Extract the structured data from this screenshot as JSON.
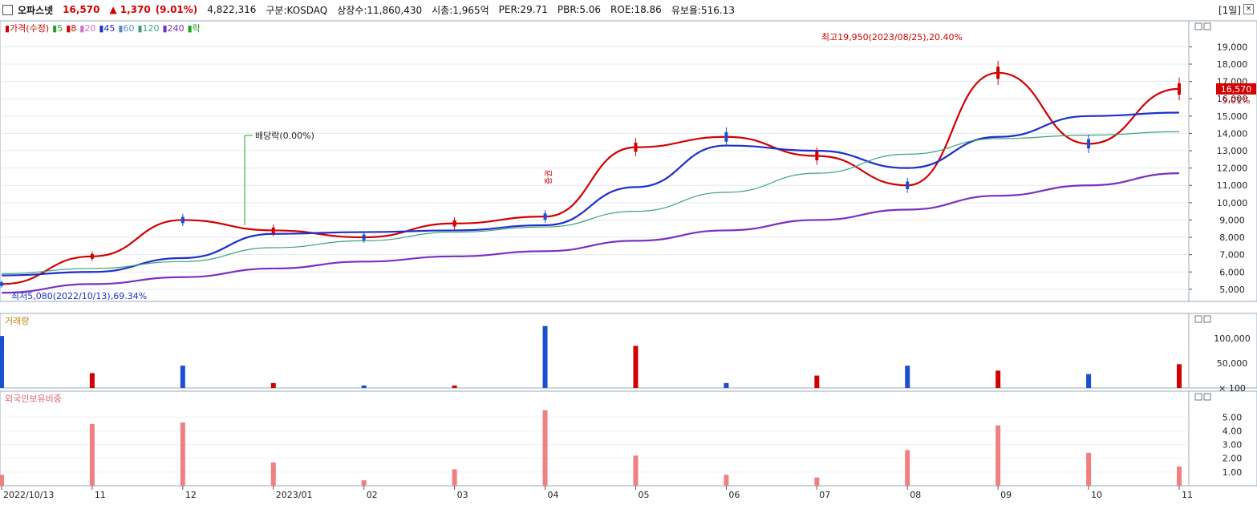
{
  "header": {
    "stock_name": "오파스넷",
    "price": "16,570",
    "change_arrow": "▲",
    "change": "1,370",
    "change_pct": "(9.01%)",
    "volume": "4,822,316",
    "market": "구분:KOSDAQ",
    "listed_shares": "상장수:11,860,430",
    "market_cap": "시총:1,965억",
    "per": "PER:29.71",
    "pbr": "PBR:5.06",
    "roe": "ROE:18.86",
    "float_ratio": "유보율:516.13",
    "period": "[1일]"
  },
  "price_panel": {
    "legend": [
      {
        "label": "가격(수정)",
        "color": "#d20000"
      },
      {
        "label": "5",
        "color": "#21a021"
      },
      {
        "label": "8",
        "color": "#d20000"
      },
      {
        "label": "20",
        "color": "#d070c0"
      },
      {
        "label": "45",
        "color": "#1c2fc8"
      },
      {
        "label": "60",
        "color": "#5a8ac8"
      },
      {
        "label": "120",
        "color": "#3aa07a"
      },
      {
        "label": "240",
        "color": "#7a30c0"
      },
      {
        "label": "락",
        "color": "#21a021"
      }
    ],
    "high_annotation": "최고19,950(2023/08/25),20.40%",
    "low_annotation": "최저5,080(2022/10/13),69.34%",
    "dividend_annotation": "배당락(0.00%)",
    "event_annotation": "증권",
    "current_price_tag": "16,570",
    "current_pct_tag": "9.01%"
  },
  "volume_panel": {
    "title": "거래량"
  },
  "foreign_panel": {
    "title": "외국인보유비중"
  },
  "x_axis_labels": [
    "2022/10/13",
    "11",
    "12",
    "2023/01",
    "02",
    "03",
    "04",
    "05",
    "06",
    "07",
    "08",
    "09",
    "10",
    "11"
  ],
  "chart_data": [
    {
      "type": "line",
      "title": "가격(수정)",
      "y_ticks": [
        5000,
        6000,
        7000,
        8000,
        9000,
        10000,
        11000,
        12000,
        13000,
        14000,
        15000,
        16000,
        17000,
        18000,
        19000
      ],
      "y_tick_labels": [
        "5,000",
        "6,000",
        "7,000",
        "8,000",
        "9,000",
        "10,000",
        "11,000",
        "12,000",
        "13,000",
        "14,000",
        "15,000",
        "16,000",
        "17,000",
        "18,000",
        "19,000"
      ],
      "ylim": [
        4300,
        20500
      ],
      "x": [
        "2022/10/13",
        "2022/11",
        "2022/12",
        "2023/01",
        "2023/02",
        "2023/03",
        "2023/04",
        "2023/05",
        "2023/06",
        "2023/07",
        "2023/08",
        "2023/09",
        "2023/10",
        "2023/11"
      ],
      "series": [
        {
          "name": "가격(수정)",
          "values": [
            5300,
            6900,
            9000,
            8400,
            8000,
            8800,
            9200,
            13200,
            13800,
            12700,
            11000,
            17500,
            13400,
            16570
          ]
        },
        {
          "name": "45",
          "values": [
            5800,
            6000,
            6800,
            8200,
            8300,
            8400,
            8700,
            10900,
            13300,
            13000,
            12000,
            13800,
            15000,
            15200
          ]
        },
        {
          "name": "120",
          "values": [
            5900,
            6200,
            6600,
            7400,
            7800,
            8300,
            8600,
            9500,
            10600,
            11700,
            12800,
            13700,
            13900,
            14100
          ]
        },
        {
          "name": "240",
          "values": [
            4800,
            5300,
            5700,
            6200,
            6600,
            6900,
            7200,
            7800,
            8400,
            9000,
            9600,
            10400,
            11000,
            11700
          ]
        }
      ]
    },
    {
      "type": "bar",
      "title": "거래량",
      "y_ticks": [
        100,
        50000,
        100000
      ],
      "y_tick_labels": [
        "× 100",
        "50,000",
        "100,000"
      ],
      "categories": [
        "2022/10/13",
        "2022/11",
        "2022/12",
        "2023/01",
        "2023/02",
        "2023/03",
        "2023/04",
        "2023/05",
        "2023/06",
        "2023/07",
        "2023/08",
        "2023/09",
        "2023/10",
        "2023/11"
      ],
      "values": [
        105000,
        30000,
        45000,
        10000,
        5000,
        5000,
        125000,
        85000,
        10000,
        25000,
        45000,
        35000,
        28000,
        48000
      ]
    },
    {
      "type": "bar",
      "title": "외국인보유비중",
      "y_ticks": [
        1,
        2,
        3,
        4,
        5
      ],
      "y_tick_labels": [
        "1.00",
        "2.00",
        "3.00",
        "4.00",
        "5.00"
      ],
      "categories": [
        "2022/10/13",
        "2022/11",
        "2022/12",
        "2023/01",
        "2023/02",
        "2023/03",
        "2023/04",
        "2023/05",
        "2023/06",
        "2023/07",
        "2023/08",
        "2023/09",
        "2023/10",
        "2023/11"
      ],
      "values": [
        0.8,
        4.5,
        4.6,
        1.7,
        0.4,
        1.2,
        5.5,
        2.2,
        0.8,
        0.6,
        2.6,
        4.4,
        2.4,
        1.4
      ]
    }
  ]
}
